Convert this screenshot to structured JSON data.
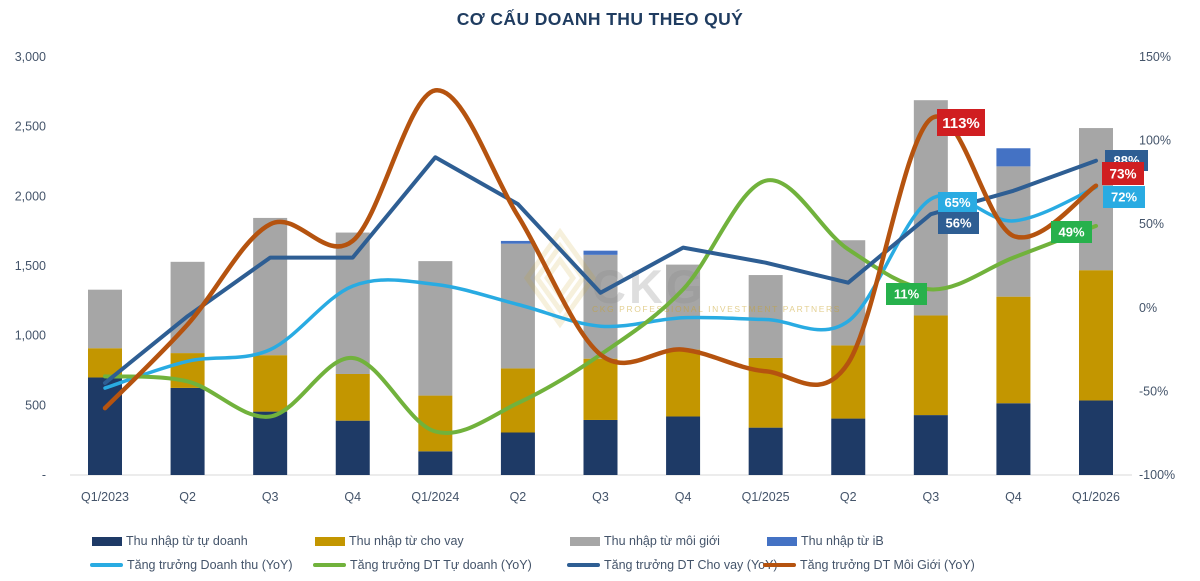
{
  "title": "CƠ CẤU DOANH THU THEO QUÝ",
  "watermark": {
    "text": "CKG",
    "subtext": "CKG PROFESSIONAL INVESTMENT PARTNERS",
    "gold": "#C9A227"
  },
  "colors": {
    "bar_navy": "#1E3A66",
    "bar_gold": "#C39600",
    "bar_gray": "#A6A6A6",
    "bar_blue": "#4472C4",
    "line_cyan": "#29ABE2",
    "line_green": "#71B23C",
    "line_navy": "#2E5E93",
    "line_brown": "#B5530F",
    "label_red": "#D01E21",
    "label_green": "#27B14C",
    "axis_text": "#44546A",
    "title_text": "#1F3C60",
    "baseline": "#D9D9D9"
  },
  "chart_data": {
    "type": "combo: stacked bar + line",
    "categories": [
      "Q1/2023",
      "Q2",
      "Q3",
      "Q4",
      "Q1/2024",
      "Q2",
      "Q3",
      "Q4",
      "Q1/2025",
      "Q2",
      "Q3",
      "Q4",
      "Q1/2026"
    ],
    "left_axis": {
      "title": "",
      "min": 0,
      "max": 3000,
      "tick_labels": [
        "3,000",
        "2,500",
        "2,000",
        "1,500",
        "1,000",
        "500",
        "-"
      ],
      "tick_values": [
        3000,
        2500,
        2000,
        1500,
        1000,
        500,
        0
      ]
    },
    "right_axis": {
      "title": "",
      "min": -100,
      "max": 150,
      "tick_labels": [
        "150%",
        "100%",
        "50%",
        "0%",
        "-50%",
        "-100%"
      ],
      "tick_values": [
        150,
        100,
        50,
        0,
        -50,
        -100
      ]
    },
    "grid": false,
    "legend_position": "bottom",
    "bar_series": [
      {
        "name": "Thu nhập từ tự doanh",
        "color": "#1E3A66",
        "values": [
          700,
          625,
          455,
          390,
          170,
          305,
          395,
          420,
          340,
          405,
          430,
          515,
          535
        ]
      },
      {
        "name": "Thu nhập từ cho vay",
        "color": "#C39600",
        "values": [
          210,
          250,
          405,
          335,
          400,
          460,
          440,
          480,
          500,
          525,
          715,
          765,
          935
        ]
      },
      {
        "name": "Thu nhập từ môi giới",
        "color": "#A6A6A6",
        "values": [
          420,
          655,
          985,
          1015,
          965,
          895,
          745,
          610,
          595,
          755,
          1545,
          935,
          1020
        ]
      },
      {
        "name": "Thu nhập từ iB",
        "color": "#4472C4",
        "values": [
          0,
          0,
          0,
          0,
          0,
          20,
          30,
          0,
          0,
          0,
          0,
          130,
          0
        ]
      }
    ],
    "line_series": [
      {
        "name": "Tăng trưởng Doanh thu (YoY)",
        "color": "#29ABE2",
        "smooth": true,
        "width": 3.5,
        "values": [
          -48,
          -32,
          -25,
          13,
          14,
          2,
          -11,
          -6,
          -7,
          -8,
          65,
          52,
          72
        ]
      },
      {
        "name": "Tăng trưởng DT Tự doanh (YoY)",
        "color": "#71B23C",
        "smooth": true,
        "width": 4,
        "values": [
          -41,
          -44,
          -65,
          -30,
          -74,
          -57,
          -28,
          11,
          76,
          35,
          11,
          30,
          49
        ]
      },
      {
        "name": "Tăng trưởng DT Cho vay (YoY)",
        "color": "#2E5E93",
        "smooth": false,
        "width": 4,
        "values": [
          -45,
          -5,
          30,
          30,
          90,
          62,
          9,
          36,
          27,
          15,
          56,
          70,
          88
        ]
      },
      {
        "name": "Tăng trưởng DT Môi Giới (YoY)",
        "color": "#B5530F",
        "smooth": true,
        "width": 4.5,
        "values": [
          -60,
          -10,
          50,
          40,
          130,
          55,
          -28,
          -25,
          -38,
          -33,
          113,
          43,
          73
        ]
      }
    ],
    "data_labels": [
      {
        "text": "113%",
        "series": "Tăng trưởng DT Môi Giới (YoY)",
        "category": "Q3/2025",
        "box_color": "#D01E21"
      },
      {
        "text": "65%",
        "series": "Tăng trưởng Doanh thu (YoY)",
        "category": "Q3/2025",
        "box_color": "#29ABE2"
      },
      {
        "text": "56%",
        "series": "Tăng trưởng DT Cho vay (YoY)",
        "category": "Q3/2025",
        "box_color": "#2E5E93"
      },
      {
        "text": "11%",
        "series": "Tăng trưởng DT Tự doanh (YoY)",
        "category": "Q3/2025",
        "box_color": "#27B14C"
      },
      {
        "text": "49%",
        "series": "Tăng trưởng DT Tự doanh (YoY)",
        "category": "Q1/2026",
        "box_color": "#27B14C"
      },
      {
        "text": "88%",
        "series": "Tăng trưởng DT Cho vay (YoY)",
        "category": "Q1/2026",
        "box_color": "#2E5E93"
      },
      {
        "text": "73%",
        "series": "Tăng trưởng DT Môi Giới (YoY)",
        "category": "Q1/2026",
        "box_color": "#D01E21"
      },
      {
        "text": "72%",
        "series": "Tăng trưởng Doanh thu (YoY)",
        "category": "Q1/2026",
        "box_color": "#29ABE2"
      }
    ]
  }
}
